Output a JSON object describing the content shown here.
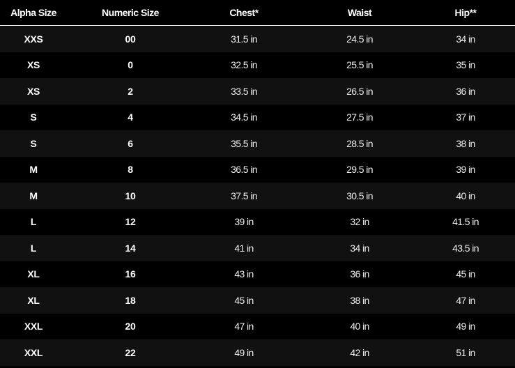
{
  "headers": [
    "Alpha Size",
    "Numeric Size",
    "Chest*",
    "Waist",
    "Hip**"
  ],
  "rows": [
    [
      "XXS",
      "00",
      "31.5 in",
      "24.5 in",
      "34 in"
    ],
    [
      "XS",
      "0",
      "32.5 in",
      "25.5 in",
      "35 in"
    ],
    [
      "XS",
      "2",
      "33.5 in",
      "26.5 in",
      "36 in"
    ],
    [
      "S",
      "4",
      "34.5 in",
      "27.5 in",
      "37 in"
    ],
    [
      "S",
      "6",
      "35.5 in",
      "28.5 in",
      "38 in"
    ],
    [
      "M",
      "8",
      "36.5 in",
      "29.5 in",
      "39 in"
    ],
    [
      "M",
      "10",
      "37.5 in",
      "30.5 in",
      "40 in"
    ],
    [
      "L",
      "12",
      "39 in",
      "32 in",
      "41.5 in"
    ],
    [
      "L",
      "14",
      "41 in",
      "34 in",
      "43.5 in"
    ],
    [
      "XL",
      "16",
      "43 in",
      "36 in",
      "45 in"
    ],
    [
      "XL",
      "18",
      "45 in",
      "38 in",
      "47 in"
    ],
    [
      "XXL",
      "20",
      "47 in",
      "40 in",
      "49 in"
    ],
    [
      "XXL",
      "22",
      "49 in",
      "42 in",
      "51 in"
    ]
  ]
}
